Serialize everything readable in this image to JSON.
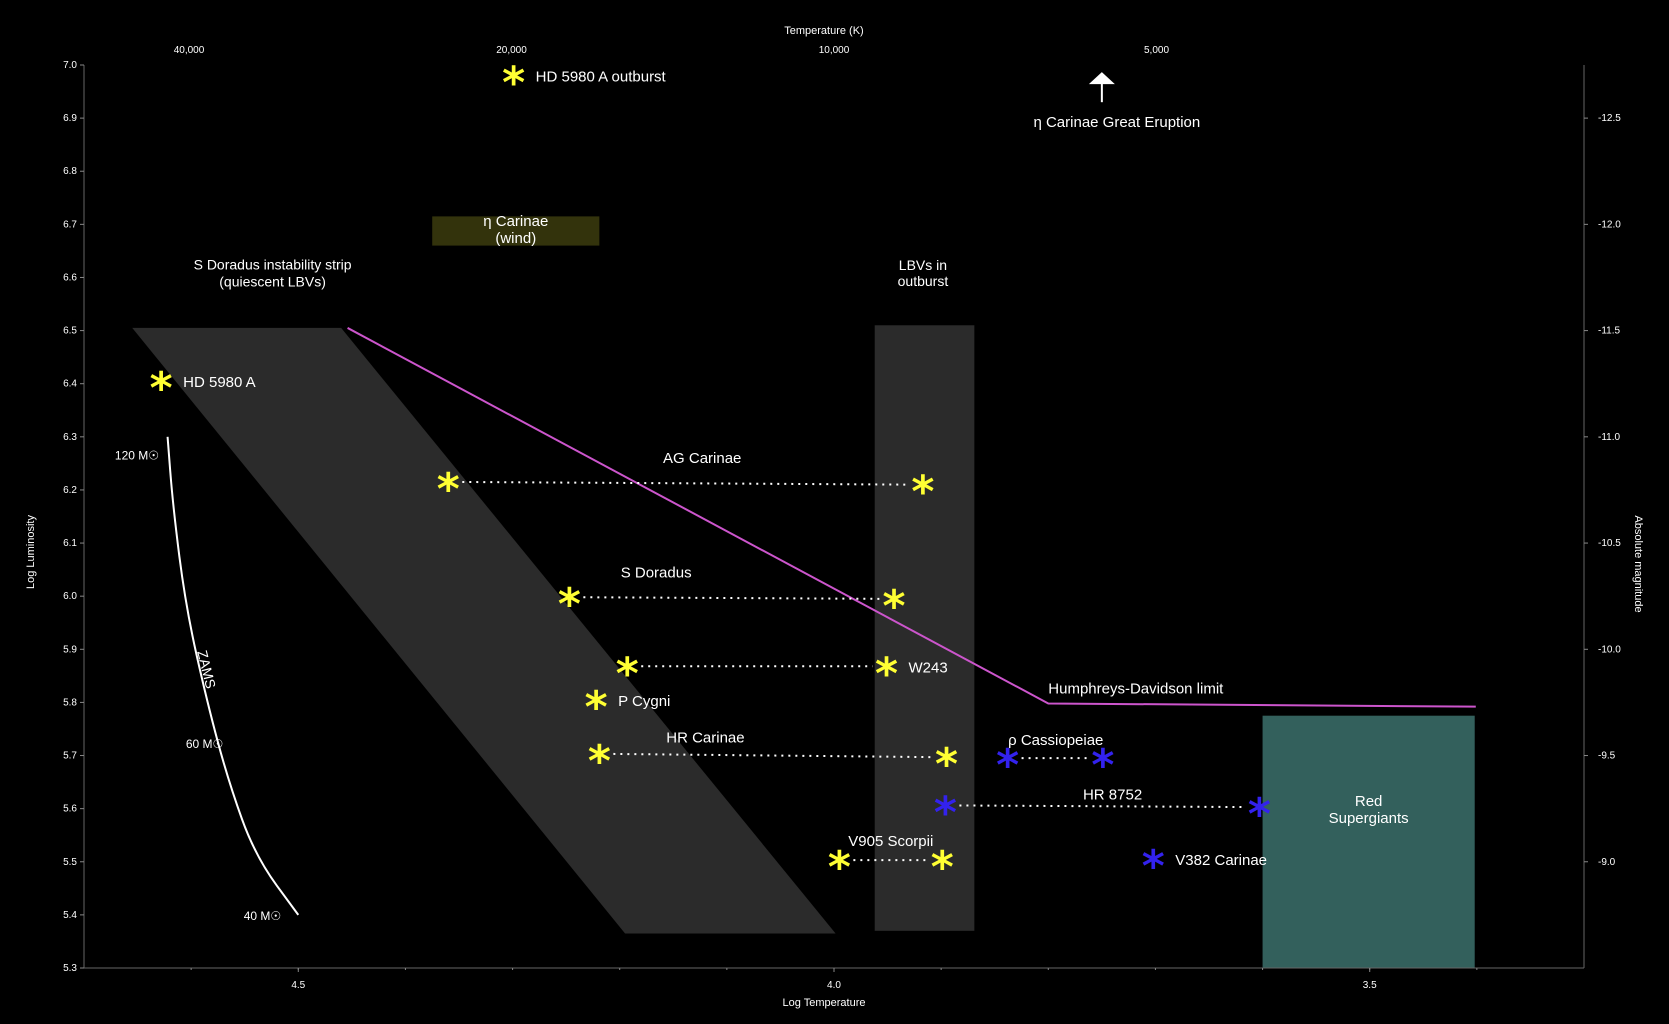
{
  "chart_data": {
    "type": "scatter",
    "title": "",
    "xlabel": "Log Temperature",
    "ylabel": "Log Luminosity",
    "x2label": "Temperature (K)",
    "y2label": "Absolute magnitude",
    "xlim": [
      4.7,
      3.3
    ],
    "ylim": [
      5.3,
      7.0
    ],
    "x_reversed": true,
    "grid": false,
    "background": "#000000",
    "colors": {
      "lbv_star": "#ffff33",
      "cool_star": "#3322ee",
      "hd_limit": "#cc55cc",
      "strip": "#2b2b2b",
      "outburst_band": "#2b2b2b",
      "red_supergiants": "#33605c",
      "eta_wind": "#33330c"
    },
    "x_ticks": [
      "4.5",
      "4.0",
      "3.5"
    ],
    "x_tick_values": [
      4.5,
      4.0,
      3.5
    ],
    "y_ticks": [
      "5.3",
      "5.4",
      "5.5",
      "5.6",
      "5.7",
      "5.8",
      "5.9",
      "6.0",
      "6.1",
      "6.2",
      "6.3",
      "6.4",
      "6.5",
      "6.6",
      "6.7",
      "6.8",
      "6.9",
      "7.0"
    ],
    "y_tick_values": [
      5.3,
      5.4,
      5.5,
      5.6,
      5.7,
      5.8,
      5.9,
      6.0,
      6.1,
      6.2,
      6.3,
      6.4,
      6.5,
      6.6,
      6.7,
      6.8,
      6.9,
      7.0
    ],
    "top_ticks": [
      "40,000",
      "20,000",
      "10,000",
      "5,000"
    ],
    "top_tick_values": [
      4.602,
      4.301,
      4.0,
      3.699
    ],
    "right_ticks": [
      "-12.5",
      "-12.0",
      "-11.5",
      "-11.0",
      "-10.5",
      "-10.0",
      "-9.5",
      "-9.0"
    ],
    "right_tick_values": [
      6.9,
      6.7,
      6.5,
      6.3,
      6.1,
      5.9,
      5.7,
      5.5
    ],
    "regions": {
      "strip": {
        "label_line1": "S Doradus instability strip",
        "label_line2": "(quiescent LBVs)",
        "polygon": [
          [
            4.655,
            6.505
          ],
          [
            4.46,
            6.505
          ],
          [
            3.9985,
            5.365
          ],
          [
            4.195,
            5.365
          ]
        ]
      },
      "outburst": {
        "label_line1": "LBVs in",
        "label_line2": "outburst",
        "x_range": [
          3.962,
          3.869
        ],
        "y_range": [
          5.37,
          6.51
        ]
      },
      "red_supergiants": {
        "label_line1": "Red",
        "label_line2": "Supergiants",
        "x_range": [
          3.6,
          3.402
        ],
        "y_range": [
          5.3,
          5.775
        ]
      },
      "eta_wind": {
        "label_line1": "η Carinae",
        "label_line2": "(wind)",
        "x_range": [
          4.375,
          4.219
        ],
        "y_range": [
          6.66,
          6.715
        ]
      }
    },
    "hd_limit": {
      "label": "Humphreys-Davidson limit",
      "points": [
        [
          4.454,
          6.505
        ],
        [
          3.8,
          5.798
        ],
        [
          3.401,
          5.792
        ]
      ]
    },
    "zams": {
      "label": "ZAMS",
      "points": [
        [
          4.622,
          6.3
        ],
        [
          4.617,
          6.17
        ],
        [
          4.605,
          5.98
        ],
        [
          4.585,
          5.8
        ],
        [
          4.565,
          5.65
        ],
        [
          4.54,
          5.51
        ],
        [
          4.5,
          5.4
        ]
      ],
      "mass_labels": [
        {
          "text": "120 M☉",
          "x": 4.63,
          "y": 6.265
        },
        {
          "text": "60 M☉",
          "x": 4.57,
          "y": 5.722
        },
        {
          "text": "40 M☉",
          "x": 4.516,
          "y": 5.398
        }
      ]
    },
    "pairs": [
      {
        "name": "AG Carinae",
        "from": [
          4.36,
          6.215
        ],
        "to": [
          3.917,
          6.21
        ],
        "color": "lbv_star"
      },
      {
        "name": "S Doradus",
        "from": [
          4.247,
          5.998
        ],
        "to": [
          3.944,
          5.995
        ],
        "color": "lbv_star"
      },
      {
        "name": "",
        "from": [
          4.193,
          5.868
        ],
        "to": [
          3.951,
          5.868
        ],
        "color": "lbv_star"
      },
      {
        "name": "HR Carinae",
        "from": [
          4.219,
          5.703
        ],
        "to": [
          3.895,
          5.697
        ],
        "color": "lbv_star"
      },
      {
        "name": "V905 Scorpii",
        "from": [
          3.995,
          5.503
        ],
        "to": [
          3.899,
          5.503
        ],
        "color": "lbv_star"
      },
      {
        "name": "ρ Cassiopeiae",
        "from": [
          3.838,
          5.695
        ],
        "to": [
          3.749,
          5.695
        ],
        "color": "cool_star"
      },
      {
        "name": "HR 8752",
        "from": [
          3.896,
          5.606
        ],
        "to": [
          3.603,
          5.603
        ],
        "color": "cool_star"
      }
    ],
    "single_stars": [
      {
        "name": "HD 5980 A",
        "x": 4.628,
        "y": 6.405,
        "color": "lbv_star"
      },
      {
        "name": "HD 5980 A outburst",
        "x": 4.299,
        "y": 6.98,
        "color": "lbv_star"
      },
      {
        "name": "W243",
        "x": 3.951,
        "y": 5.868,
        "color": "lbv_star"
      },
      {
        "name": "P Cygni",
        "x": 4.222,
        "y": 5.805,
        "color": "lbv_star"
      },
      {
        "name": "V382 Carinae",
        "x": 3.702,
        "y": 5.505,
        "color": "cool_star"
      }
    ],
    "eta_eruption": {
      "label": "η Carinae Great Eruption",
      "x": 3.75,
      "y": 6.93
    }
  }
}
